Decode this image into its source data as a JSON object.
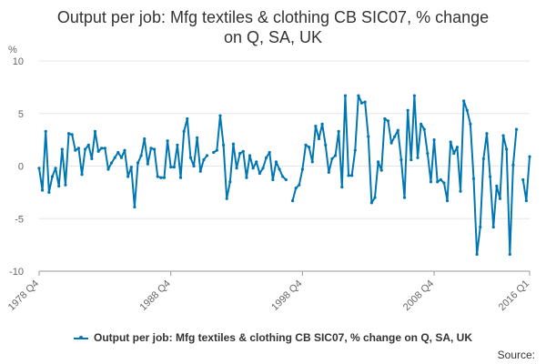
{
  "title_lines": [
    "Output per job: Mfg textiles & clothing CB SIC07, % change",
    "on Q, SA, UK"
  ],
  "source_label": "Source:",
  "colors": {
    "series": "#0077b3",
    "grid": "#e6e6e6",
    "axis": "#999999"
  },
  "chart_data": {
    "type": "line",
    "title": "Output per job: Mfg textiles & clothing CB SIC07, % change on Q, SA, UK",
    "ylabel": "%",
    "ylim": [
      -10,
      10
    ],
    "yticks": [
      -10,
      -5,
      0,
      5,
      10
    ],
    "x_start": "1978 Q4",
    "x_end": "2016 Q1",
    "xtick_labels": [
      "1978 Q4",
      "1988 Q4",
      "1998 Q4",
      "2008 Q4",
      "2016 Q1"
    ],
    "grid": true,
    "legend_position": "bottom",
    "series": [
      {
        "name": "Output per job: Mfg textiles & clothing CB SIC07, % change on Q, SA, UK",
        "values": [
          -0.2,
          -2.3,
          3.3,
          -2.5,
          -1.0,
          -0.2,
          -1.9,
          1.6,
          -1.8,
          3.1,
          3.0,
          1.5,
          1.7,
          -0.8,
          1.6,
          2.0,
          0.7,
          3.3,
          1.4,
          1.7,
          1.7,
          -0.3,
          0.3,
          0.8,
          1.3,
          0.8,
          1.5,
          -1.0,
          -0.1,
          -3.9,
          0.3,
          1.0,
          2.6,
          0.2,
          1.7,
          1.6,
          -1.0,
          -1.1,
          -1.1,
          2.4,
          -0.1,
          -0.1,
          2.0,
          -1.1,
          3.3,
          4.5,
          0.8,
          0.0,
          2.7,
          -0.5,
          0.6,
          1.0,
          null,
          1.3,
          1.5,
          4.8,
          2.0,
          -3.1,
          -1.5,
          2.1,
          -0.2,
          1.2,
          1.4,
          -1.1,
          1.0,
          -0.2,
          0.4,
          -0.7,
          -0.2,
          0.8,
          1.3,
          -1.3,
          0.4,
          -0.3,
          -1.0,
          -1.3,
          null,
          -3.3,
          -2.1,
          -1.8,
          -0.3,
          2.0,
          1.8,
          0.4,
          3.8,
          2.6,
          4.0,
          2.0,
          -0.6,
          0.7,
          1.0,
          3.3,
          -2.0,
          6.7,
          -0.9,
          -0.9,
          1.5,
          6.7,
          6.0,
          6.1,
          2.8,
          -3.5,
          -3.0,
          0.4,
          -0.4,
          4.5,
          4.3,
          2.2,
          2.8,
          3.4,
          0.6,
          -3.0,
          5.3,
          0.6,
          6.7,
          0.8,
          4.0,
          3.5,
          1.2,
          -1.5,
          2.5,
          -1.5,
          -1.3,
          -1.6,
          -3.3,
          2.3,
          1.2,
          1.8,
          -2.4,
          6.2,
          5.3,
          4.0,
          -1.2,
          -8.4,
          -5.8,
          0.7,
          3.1,
          -1.0,
          -5.8,
          -1.9,
          -3.1,
          2.9,
          1.6,
          -8.4,
          0.1,
          3.5,
          null,
          -1.3,
          -3.3,
          0.9
        ]
      }
    ]
  }
}
